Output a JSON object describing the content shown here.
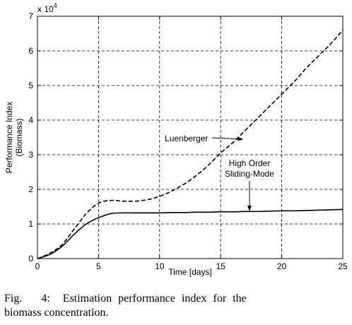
{
  "chart_data": {
    "type": "line",
    "xlabel": "Time [days]",
    "ylabel": [
      "Performance Index",
      "(Biomass)"
    ],
    "xlim": [
      0,
      25
    ],
    "ylim": [
      0,
      70000
    ],
    "x_ticks": [
      0,
      5,
      10,
      15,
      20,
      25
    ],
    "y_ticks": [
      0,
      1,
      2,
      3,
      4,
      5,
      6,
      7
    ],
    "y_scale_label": {
      "base": "x 10",
      "exponent": "4"
    },
    "grid": true,
    "series": [
      {
        "name": "Luenberger",
        "style": "dashed",
        "x": [
          0,
          1,
          2,
          3,
          4,
          5,
          6,
          7,
          8,
          9,
          10,
          11,
          12,
          13,
          14,
          15,
          16,
          17,
          18,
          19,
          20,
          21,
          22,
          23,
          24,
          25
        ],
        "y": [
          0,
          1500,
          4000,
          8500,
          13000,
          16000,
          16800,
          16600,
          16600,
          17000,
          18000,
          19500,
          21500,
          24000,
          27000,
          30500,
          33500,
          37000,
          40500,
          44000,
          47500,
          51000,
          55000,
          58500,
          62000,
          66000
        ]
      },
      {
        "name": "High Order Sliding-Mode",
        "style": "solid",
        "x": [
          0,
          1,
          2,
          3,
          4,
          5,
          6,
          7,
          8,
          9,
          10,
          11,
          12,
          13,
          14,
          15,
          16,
          17,
          18,
          19,
          20,
          21,
          22,
          23,
          24,
          25
        ],
        "y": [
          0,
          1200,
          3500,
          7000,
          10000,
          11800,
          13000,
          13200,
          13200,
          13200,
          13200,
          13300,
          13300,
          13400,
          13400,
          13500,
          13500,
          13600,
          13600,
          13700,
          13800,
          13800,
          13900,
          14000,
          14100,
          14200
        ]
      }
    ],
    "annotations": [
      {
        "label": "Luenberger",
        "lines": [
          "Luenberger"
        ]
      },
      {
        "label": "High Order Sliding-Mode",
        "lines": [
          "High Order",
          "Sliding-Mode"
        ]
      }
    ]
  },
  "caption": {
    "line1": "Fig.   4:  Estimation performance index for the",
    "line2": "biomass concentration."
  }
}
